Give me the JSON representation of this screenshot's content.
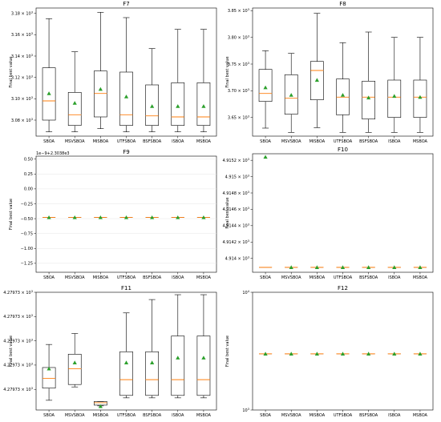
{
  "chart_data": [
    {
      "type": "box",
      "title": "F7",
      "ylabel": "Final best value",
      "categories": [
        "SBOA",
        "MSVSBOA",
        "MISBOA",
        "UTFSBOA",
        "BSFSBOA",
        "ISBOA",
        "MSBOA"
      ],
      "ylim": [
        3.065,
        3.185
      ],
      "scale_exponent": "10",
      "scale_power": "3",
      "yticks": [
        3.08,
        3.1,
        3.12,
        3.14,
        3.16,
        3.18
      ],
      "ytick_labels": [
        "3.08",
        "3.10",
        "3.12",
        "3.14",
        "3.16",
        "3.18"
      ],
      "boxes": [
        {
          "whislo": 3.069,
          "q1": 3.08,
          "med": 3.098,
          "q3": 3.129,
          "whishi": 3.175,
          "mean": 3.105
        },
        {
          "whislo": 3.069,
          "q1": 3.075,
          "med": 3.085,
          "q3": 3.106,
          "whishi": 3.144,
          "mean": 3.096
        },
        {
          "whislo": 3.072,
          "q1": 3.083,
          "med": 3.105,
          "q3": 3.126,
          "whishi": 3.181,
          "mean": 3.109
        },
        {
          "whislo": 3.069,
          "q1": 3.075,
          "med": 3.085,
          "q3": 3.125,
          "whishi": 3.176,
          "mean": 3.102
        },
        {
          "whislo": 3.069,
          "q1": 3.075,
          "med": 3.084,
          "q3": 3.113,
          "whishi": 3.147,
          "mean": 3.093
        },
        {
          "whislo": 3.069,
          "q1": 3.075,
          "med": 3.083,
          "q3": 3.115,
          "whishi": 3.165,
          "mean": 3.093
        },
        {
          "whislo": 3.069,
          "q1": 3.075,
          "med": 3.083,
          "q3": 3.115,
          "whishi": 3.165,
          "mean": 3.093
        }
      ]
    },
    {
      "type": "box",
      "title": "F8",
      "ylabel": "Final best value",
      "categories": [
        "SBOA",
        "MSVSBOA",
        "MISBOA",
        "UTFSBOA",
        "BSFSBOA",
        "ISBOA",
        "MSBOA"
      ],
      "ylim": [
        3.615,
        3.855
      ],
      "scale_exponent": "10",
      "scale_power": "3",
      "yticks": [
        3.65,
        3.7,
        3.75,
        3.8,
        3.85
      ],
      "ytick_labels": [
        "3.65",
        "3.70",
        "3.75",
        "3.80",
        "3.85"
      ],
      "boxes": [
        {
          "whislo": 3.63,
          "q1": 3.68,
          "med": 3.695,
          "q3": 3.74,
          "whishi": 3.775,
          "mean": 3.706
        },
        {
          "whislo": 3.622,
          "q1": 3.656,
          "med": 3.686,
          "q3": 3.73,
          "whishi": 3.77,
          "mean": 3.692
        },
        {
          "whislo": 3.631,
          "q1": 3.683,
          "med": 3.738,
          "q3": 3.755,
          "whishi": 3.845,
          "mean": 3.72
        },
        {
          "whislo": 3.622,
          "q1": 3.655,
          "med": 3.688,
          "q3": 3.722,
          "whishi": 3.79,
          "mean": 3.692
        },
        {
          "whislo": 3.622,
          "q1": 3.647,
          "med": 3.688,
          "q3": 3.718,
          "whishi": 3.81,
          "mean": 3.687
        },
        {
          "whislo": 3.622,
          "q1": 3.65,
          "med": 3.688,
          "q3": 3.72,
          "whishi": 3.8,
          "mean": 3.69
        },
        {
          "whislo": 3.622,
          "q1": 3.65,
          "med": 3.688,
          "q3": 3.72,
          "whishi": 3.8,
          "mean": 3.688
        }
      ]
    },
    {
      "type": "box",
      "title": "F9",
      "ylabel": "Final best value",
      "categories": [
        "SBOA",
        "MSVSBOA",
        "MISBOA",
        "UTFSBOA",
        "BSFSBOA",
        "ISBOA",
        "MSBOA"
      ],
      "ylim": [
        -1.4,
        0.55
      ],
      "offset_label": "1e−9+2.3038e3",
      "yticks": [
        0.5,
        0.25,
        0.0,
        -0.25,
        -0.5,
        -0.75,
        -1.0,
        -1.25
      ],
      "ytick_labels": [
        "0.50",
        "0.25",
        "0.00",
        "−0.25",
        "−0.50",
        "−0.75",
        "−1.00",
        "−1.25"
      ],
      "boxes": [
        {
          "whislo": -0.48,
          "q1": -0.48,
          "med": -0.48,
          "q3": -0.48,
          "whishi": -0.48,
          "mean": -0.48
        },
        {
          "whislo": -0.48,
          "q1": -0.48,
          "med": -0.48,
          "q3": -0.48,
          "whishi": -0.48,
          "mean": -0.48
        },
        {
          "whislo": -0.48,
          "q1": -0.48,
          "med": -0.48,
          "q3": -0.48,
          "whishi": -0.48,
          "mean": -0.48
        },
        {
          "whislo": -0.48,
          "q1": -0.48,
          "med": -0.48,
          "q3": -0.48,
          "whishi": -0.48,
          "mean": -0.48
        },
        {
          "whislo": -0.48,
          "q1": -0.48,
          "med": -0.48,
          "q3": -0.48,
          "whishi": -0.48,
          "mean": -0.48
        },
        {
          "whislo": -0.48,
          "q1": -0.48,
          "med": -0.48,
          "q3": -0.48,
          "whishi": -0.48,
          "mean": -0.48
        },
        {
          "whislo": -0.48,
          "q1": -0.48,
          "med": -0.48,
          "q3": -0.48,
          "whishi": -0.48,
          "mean": -0.48
        }
      ]
    },
    {
      "type": "box",
      "title": "F10",
      "ylabel": "Final best value",
      "categories": [
        "SBOA",
        "MSVSBOA",
        "MISBOA",
        "UTFSBOA",
        "BSFSBOA",
        "ISBOA",
        "MSBOA"
      ],
      "ylim": [
        4.91383,
        4.91528
      ],
      "scale_exponent": "10",
      "scale_power": "3",
      "yticks": [
        4.914,
        4.9142,
        4.9144,
        4.9146,
        4.9148,
        4.915,
        4.9152
      ],
      "ytick_labels": [
        "4.914",
        "4.9142",
        "4.9144",
        "4.9146",
        "4.9148",
        "4.915",
        "4.9152"
      ],
      "boxes": [
        {
          "whislo": 4.91389,
          "q1": 4.91389,
          "med": 4.91389,
          "q3": 4.91389,
          "whishi": 4.91389,
          "mean": 4.91524
        },
        {
          "whislo": 4.91389,
          "q1": 4.91389,
          "med": 4.91389,
          "q3": 4.91389,
          "whishi": 4.91389,
          "mean": 4.91389
        },
        {
          "whislo": 4.91389,
          "q1": 4.91389,
          "med": 4.91389,
          "q3": 4.91389,
          "whishi": 4.91389,
          "mean": 4.91389
        },
        {
          "whislo": 4.91389,
          "q1": 4.91389,
          "med": 4.91389,
          "q3": 4.91389,
          "whishi": 4.91389,
          "mean": 4.91389
        },
        {
          "whislo": 4.91389,
          "q1": 4.91389,
          "med": 4.91389,
          "q3": 4.91389,
          "whishi": 4.91389,
          "mean": 4.91389
        },
        {
          "whislo": 4.91389,
          "q1": 4.91389,
          "med": 4.91389,
          "q3": 4.91389,
          "whishi": 4.91389,
          "mean": 4.91389
        },
        {
          "whislo": 4.91389,
          "q1": 4.91389,
          "med": 4.91389,
          "q3": 4.91389,
          "whishi": 4.91389,
          "mean": 4.91389
        }
      ]
    },
    {
      "type": "box",
      "title": "F11",
      "ylabel": "Final best value",
      "categories": [
        "SBOA",
        "MSVSBOA",
        "MISBOA",
        "UTFSBOA",
        "BSFSBOA",
        "ISBOA",
        "MSBOA"
      ],
      "ylim": [
        0.15,
        5.0
      ],
      "scale_exponent": "10",
      "scale_power": "3",
      "yticks": [
        1,
        2,
        3,
        4,
        5
      ],
      "ytick_labels": [
        "4.27973",
        "4.27973",
        "4.27973",
        "4.27973",
        "4.27973"
      ],
      "boxes": [
        {
          "whislo": 0.55,
          "q1": 1.05,
          "med": 1.45,
          "q3": 1.9,
          "whishi": 2.85,
          "mean": 1.85
        },
        {
          "whislo": 1.1,
          "q1": 1.2,
          "med": 1.85,
          "q3": 2.45,
          "whishi": 3.3,
          "mean": 2.1
        },
        {
          "whislo": 0.32,
          "q1": 0.35,
          "med": 0.45,
          "q3": 0.5,
          "whishi": 0.5,
          "mean": 0.3
        },
        {
          "whislo": 0.65,
          "q1": 0.75,
          "med": 1.4,
          "q3": 2.55,
          "whishi": 4.15,
          "mean": 2.1
        },
        {
          "whislo": 0.65,
          "q1": 0.75,
          "med": 1.4,
          "q3": 2.55,
          "whishi": 4.7,
          "mean": 2.1
        },
        {
          "whislo": 0.65,
          "q1": 0.75,
          "med": 1.4,
          "q3": 3.2,
          "whishi": 4.9,
          "mean": 2.3
        },
        {
          "whislo": 0.65,
          "q1": 0.75,
          "med": 1.4,
          "q3": 3.2,
          "whishi": 4.9,
          "mean": 2.3
        }
      ]
    },
    {
      "type": "box",
      "title": "F12",
      "ylabel": "Final best value",
      "categories": [
        "SBOA",
        "MSVSBOA",
        "MISBOA",
        "UTFSBOA",
        "BSFSBOA",
        "ISBOA",
        "MSBOA"
      ],
      "yscale": "log",
      "ylim": [
        1000,
        10000
      ],
      "yticks": [
        1000,
        10000
      ],
      "ytick_base": [
        "10",
        "10"
      ],
      "ytick_power": [
        "3",
        "4"
      ],
      "boxes": [
        {
          "whislo": 3000,
          "q1": 3000,
          "med": 3000,
          "q3": 3000,
          "whishi": 3000,
          "mean": 3000
        },
        {
          "whislo": 3000,
          "q1": 3000,
          "med": 3000,
          "q3": 3000,
          "whishi": 3000,
          "mean": 3000
        },
        {
          "whislo": 3000,
          "q1": 3000,
          "med": 3000,
          "q3": 3000,
          "whishi": 3000,
          "mean": 3000
        },
        {
          "whislo": 3000,
          "q1": 3000,
          "med": 3000,
          "q3": 3000,
          "whishi": 3000,
          "mean": 3000
        },
        {
          "whislo": 3000,
          "q1": 3000,
          "med": 3000,
          "q3": 3000,
          "whishi": 3000,
          "mean": 3000
        },
        {
          "whislo": 3000,
          "q1": 3000,
          "med": 3000,
          "q3": 3000,
          "whishi": 3000,
          "mean": 3000
        },
        {
          "whislo": 3000,
          "q1": 3000,
          "med": 3000,
          "q3": 3000,
          "whishi": 3000,
          "mean": 3000
        }
      ]
    }
  ],
  "colors": {
    "median": "#ff7f0e",
    "mean_marker": "#2ca02c",
    "box_edge": "#000000",
    "grid": "#e6e6e6"
  }
}
